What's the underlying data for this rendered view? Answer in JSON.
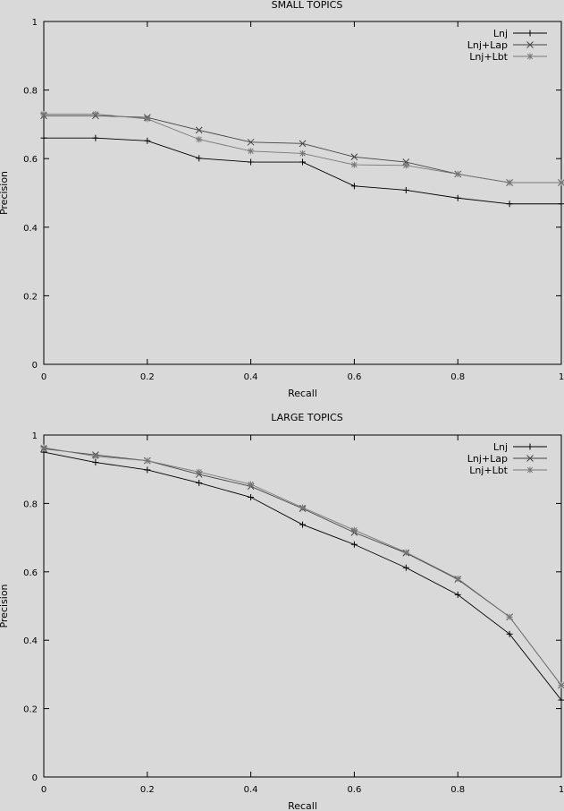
{
  "chart_data": [
    {
      "type": "line",
      "title": "SMALL TOPICS",
      "xlabel": "Recall",
      "ylabel": "Precision",
      "xlim": [
        0,
        1
      ],
      "ylim": [
        0,
        1
      ],
      "xticks": [
        "0",
        "0.2",
        "0.4",
        "0.6",
        "0.8",
        "1"
      ],
      "yticks": [
        "0",
        "0.2",
        "0.4",
        "0.6",
        "0.8",
        "1"
      ],
      "legend_position": "top-right",
      "grid": false,
      "x": [
        0,
        0.1,
        0.2,
        0.3,
        0.4,
        0.5,
        0.6,
        0.7,
        0.8,
        0.9,
        1.0
      ],
      "series": [
        {
          "name": "Lnj",
          "marker": "plus",
          "values": [
            0.66,
            0.66,
            0.652,
            0.601,
            0.59,
            0.59,
            0.52,
            0.508,
            0.485,
            0.468,
            0.468
          ]
        },
        {
          "name": "Lnj+Lap",
          "marker": "cross",
          "values": [
            0.725,
            0.725,
            0.72,
            0.683,
            0.648,
            0.644,
            0.605,
            0.59,
            0.555,
            0.53,
            0.53
          ]
        },
        {
          "name": "Lnj+Lbt",
          "marker": "star",
          "values": [
            0.73,
            0.73,
            0.716,
            0.656,
            0.622,
            0.615,
            0.582,
            0.58,
            0.555,
            0.53,
            0.53
          ]
        }
      ]
    },
    {
      "type": "line",
      "title": "LARGE TOPICS",
      "xlabel": "Recall",
      "ylabel": "Precision",
      "xlim": [
        0,
        1
      ],
      "ylim": [
        0,
        1
      ],
      "xticks": [
        "0",
        "0.2",
        "0.4",
        "0.6",
        "0.8",
        "1"
      ],
      "yticks": [
        "0",
        "0.2",
        "0.4",
        "0.6",
        "0.8",
        "1"
      ],
      "legend_position": "top-right",
      "grid": false,
      "x": [
        0,
        0.1,
        0.2,
        0.3,
        0.4,
        0.5,
        0.6,
        0.7,
        0.8,
        0.9,
        1.0
      ],
      "series": [
        {
          "name": "Lnj",
          "marker": "plus",
          "values": [
            0.95,
            0.92,
            0.898,
            0.86,
            0.818,
            0.738,
            0.68,
            0.612,
            0.533,
            0.418,
            0.225
          ]
        },
        {
          "name": "Lnj+Lap",
          "marker": "cross",
          "values": [
            0.96,
            0.942,
            0.925,
            0.885,
            0.85,
            0.785,
            0.715,
            0.655,
            0.578,
            0.468,
            0.268
          ]
        },
        {
          "name": "Lnj+Lbt",
          "marker": "star",
          "values": [
            0.963,
            0.938,
            0.925,
            0.892,
            0.856,
            0.788,
            0.722,
            0.657,
            0.58,
            0.468,
            0.268
          ]
        }
      ]
    }
  ]
}
